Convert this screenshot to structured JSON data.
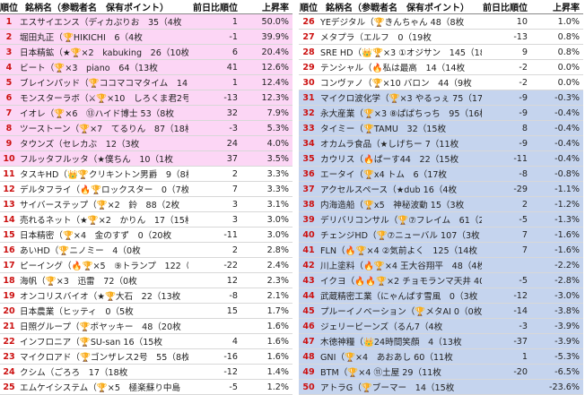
{
  "headers": {
    "rank": "順位",
    "name": "銘柄名（参戦者名　保有ポイント）",
    "prev": "前日比順位",
    "rate": "上昇率"
  },
  "colors": {
    "pink": "#fcd6f5",
    "blue": "#c5d4ee",
    "rank": "#cc1111"
  },
  "left": [
    {
      "rank": "1",
      "name": "エスサイエンス（ディカぷりお　35（4枚",
      "prev": "1",
      "rate": "50.0%",
      "hl": "pink"
    },
    {
      "rank": "2",
      "name": "堀田丸正（🏆HIKICHI　6（4枚",
      "prev": "-1",
      "rate": "39.9%",
      "hl": "pink"
    },
    {
      "rank": "3",
      "name": "日本精鉱（★🏆×2　kabuking　26（10枚",
      "prev": "6",
      "rate": "20.4%",
      "hl": "pink"
    },
    {
      "rank": "4",
      "name": "ビート（🏆×3　piano　64（13枚",
      "prev": "41",
      "rate": "12.6%",
      "hl": "pink"
    },
    {
      "rank": "5",
      "name": "ブレインパッド（🏆ココマコマタイム　14　（19枚",
      "prev": "1",
      "rate": "12.4%",
      "hl": "pink"
    },
    {
      "rank": "6",
      "name": "モンスターラボ（⚔🏆×10　しろくま君2号 14（18枚",
      "prev": "-13",
      "rate": "12.3%",
      "hl": "pink"
    },
    {
      "rank": "7",
      "name": "イオレ（🏆×6　⑬ハイド博士 53（8枚",
      "prev": "32",
      "rate": "7.9%",
      "hl": "pink"
    },
    {
      "rank": "8",
      "name": "ツーストーン（🏆×7　てるりん　87（18枚",
      "prev": "-3",
      "rate": "5.3%",
      "hl": "pink"
    },
    {
      "rank": "9",
      "name": "タウンズ（セレカぶ　12（3枚",
      "prev": "24",
      "rate": "4.0%",
      "hl": "pink"
    },
    {
      "rank": "10",
      "name": "フルッタフルッタ（★僕ちん　10（1枚",
      "prev": "37",
      "rate": "3.5%",
      "hl": "pink"
    },
    {
      "rank": "11",
      "name": "タスキHD（👑🏆クリキントン男爵　9（8枚",
      "prev": "2",
      "rate": "3.3%",
      "hl": ""
    },
    {
      "rank": "12",
      "name": "デルタフライ（🔥🏆ロックスター　0（7枚",
      "prev": "7",
      "rate": "3.3%",
      "hl": ""
    },
    {
      "rank": "13",
      "name": "サイバーステップ（🏆×2　鈴　88（2枚",
      "prev": "3",
      "rate": "3.1%",
      "hl": ""
    },
    {
      "rank": "14",
      "name": "売れるネット（★🏆×2　かりん　17（15枚",
      "prev": "3",
      "rate": "3.0%",
      "hl": ""
    },
    {
      "rank": "15",
      "name": "日本精密（🏆×4　金のすず　0（20枚",
      "prev": "-11",
      "rate": "3.0%",
      "hl": ""
    },
    {
      "rank": "16",
      "name": "あいHD（🏆ニノミー　4（0枚",
      "prev": "2",
      "rate": "2.8%",
      "hl": ""
    },
    {
      "rank": "17",
      "name": "ピーイング（🔥🏆×5　⑨トランプ　122（12枚",
      "prev": "-22",
      "rate": "2.4%",
      "hl": ""
    },
    {
      "rank": "18",
      "name": "海帆（🏆×3　迅雷　72（0枚",
      "prev": "12",
      "rate": "2.3%",
      "hl": ""
    },
    {
      "rank": "19",
      "name": "オンコリスバイオ（★🏆大石　22（13枚",
      "prev": "-8",
      "rate": "2.1%",
      "hl": ""
    },
    {
      "rank": "20",
      "name": "日本農業（ヒッティ　0（5枚",
      "prev": "15",
      "rate": "1.7%",
      "hl": ""
    },
    {
      "rank": "21",
      "name": "日照グループ（🏆ポヤッキー　48（20枚",
      "prev": "",
      "rate": "1.6%",
      "hl": ""
    },
    {
      "rank": "22",
      "name": "インフロニア（🏆SU-san 16（15枚",
      "prev": "4",
      "rate": "1.6%",
      "hl": ""
    },
    {
      "rank": "23",
      "name": "マイクロアド（🏆ゴンザレス2号　55（8枚",
      "prev": "-16",
      "rate": "1.6%",
      "hl": ""
    },
    {
      "rank": "24",
      "name": "クシム（ごろろ　17（18枚",
      "prev": "-12",
      "rate": "1.4%",
      "hl": ""
    },
    {
      "rank": "25",
      "name": "エムケイシステム（🏆×5　極楽蘇り中島　85（16枚",
      "prev": "-5",
      "rate": "1.2%",
      "hl": ""
    }
  ],
  "right": [
    {
      "rank": "26",
      "name": "YEデジタル（🏆きんちゃん 48（8枚",
      "prev": "10",
      "rate": "1.0%",
      "hl": ""
    },
    {
      "rank": "27",
      "name": "メタプラ（エルフ　0（19枚",
      "prev": "-13",
      "rate": "0.8%",
      "hl": ""
    },
    {
      "rank": "28",
      "name": "SRE HD（👑🏆×3 ①オジサン　145（18枚",
      "prev": "9",
      "rate": "0.8%",
      "hl": ""
    },
    {
      "rank": "29",
      "name": "テンシャル（🔥私は最高　14（14枚",
      "prev": "-2",
      "rate": "0.0%",
      "hl": ""
    },
    {
      "rank": "30",
      "name": "コンヴァノ（🏆×10 バロン　44（9枚",
      "prev": "-2",
      "rate": "0.0%",
      "hl": ""
    },
    {
      "rank": "31",
      "name": "マイクロ波化学（🏆×3 やるっぇ 75（17枚",
      "prev": "-9",
      "rate": "-0.3%",
      "hl": "blue"
    },
    {
      "rank": "32",
      "name": "永大産業（🏆×3 ⑧ぱぱちっち　95（16枚",
      "prev": "-9",
      "rate": "-0.4%",
      "hl": "blue"
    },
    {
      "rank": "33",
      "name": "タイミー（🏆TAMU　32（15枚",
      "prev": "8",
      "rate": "-0.4%",
      "hl": "blue"
    },
    {
      "rank": "34",
      "name": "オカムラ食品（★しげちー 7（11枚",
      "prev": "-9",
      "rate": "-0.4%",
      "hl": "blue"
    },
    {
      "rank": "35",
      "name": "カウリス（🔥ぱーす44　22（15枚",
      "prev": "-11",
      "rate": "-0.4%",
      "hl": "blue"
    },
    {
      "rank": "36",
      "name": "エータイ（🏆x4 トム　6（17枚",
      "prev": "-8",
      "rate": "-0.8%",
      "hl": "blue"
    },
    {
      "rank": "37",
      "name": "アクセルスペース（★dub 16（4枚",
      "prev": "-29",
      "rate": "-1.1%",
      "hl": "blue"
    },
    {
      "rank": "38",
      "name": "内海造船（🏆x5　神秘波動 15（3枚",
      "prev": "2",
      "rate": "-1.2%",
      "hl": "blue"
    },
    {
      "rank": "39",
      "name": "デリバリコンサル（🏆⑦フレイム　61（20枚",
      "prev": "-5",
      "rate": "-1.3%",
      "hl": "blue"
    },
    {
      "rank": "40",
      "name": "チェンジHD（🏆⑦ニューバル 107（3枚",
      "prev": "7",
      "rate": "-1.6%",
      "hl": "blue"
    },
    {
      "rank": "41",
      "name": "FLN（🔥🏆×4 ②気前よく　125（14枚",
      "prev": "7",
      "rate": "-1.6%",
      "hl": "blue"
    },
    {
      "rank": "42",
      "name": "川上塗料（🔥🏆×4 王大谷翔平　48（4枚",
      "prev": "",
      "rate": "-2.2%",
      "hl": "blue"
    },
    {
      "rank": "43",
      "name": "イクヨ（🔥🔥🏆×2 チョモランマ天井 40（8枚",
      "prev": "-5",
      "rate": "-2.8%",
      "hl": "blue"
    },
    {
      "rank": "44",
      "name": "武蔵精密工業（にゃんぱす雪風　0（3枚",
      "prev": "-12",
      "rate": "-3.0%",
      "hl": "blue"
    },
    {
      "rank": "45",
      "name": "プルーイノベーション（🏆メタAI 0（0枚",
      "prev": "-14",
      "rate": "-3.8%",
      "hl": "blue"
    },
    {
      "rank": "46",
      "name": "ジェリービーンズ（るん7（4枚",
      "prev": "-3",
      "rate": "-3.9%",
      "hl": "blue"
    },
    {
      "rank": "47",
      "name": "木徳神糧（👑24時間笑顔　4（13枚",
      "prev": "-37",
      "rate": "-3.9%",
      "hl": "blue"
    },
    {
      "rank": "48",
      "name": "GNI（🏆×4　あおあし 60（11枚",
      "prev": "1",
      "rate": "-5.3%",
      "hl": "blue"
    },
    {
      "rank": "49",
      "name": "BTM（🏆×4 ⑪土屋 29（11枚",
      "prev": "-20",
      "rate": "-6.5%",
      "hl": "blue"
    },
    {
      "rank": "50",
      "name": "アトラG（🏆ブーマー　14（15枚",
      "prev": "",
      "rate": "-23.6%",
      "hl": "blue"
    }
  ]
}
